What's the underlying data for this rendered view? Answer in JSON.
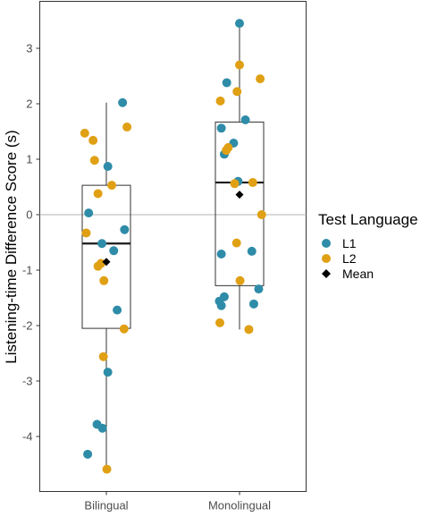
{
  "chart_data": {
    "type": "box",
    "xlabel": "",
    "ylabel": "Listening-time Difference Score (s)",
    "ylim": [
      -4.9,
      3.6
    ],
    "yticks": [
      -4,
      -3,
      -2,
      -1,
      0,
      1,
      2,
      3
    ],
    "categories": [
      "Bilingual",
      "Monolingual"
    ],
    "reference_line_y": 0,
    "grid": false,
    "legend": {
      "title": "Test Language",
      "position": "right",
      "entries": [
        {
          "label": "L1",
          "shape": "circle",
          "color": "#2e8ca8"
        },
        {
          "label": "L2",
          "shape": "circle",
          "color": "#e0a014"
        },
        {
          "label": "Mean",
          "shape": "diamond",
          "color": "#000000"
        }
      ]
    },
    "boxes": [
      {
        "category": "Bilingual",
        "whisker_low": -4.6,
        "q1": -2.05,
        "median": -0.52,
        "q3": 0.53,
        "whisker_high": 2.02,
        "mean": -0.85
      },
      {
        "category": "Monolingual",
        "whisker_low": -2.07,
        "q1": -1.28,
        "median": 0.58,
        "q3": 1.67,
        "whisker_high": 3.45,
        "mean": 0.36
      }
    ],
    "series": [
      {
        "name": "L1",
        "color": "#2e8ca8",
        "points": [
          {
            "group": "Bilingual",
            "jitter": 0.33,
            "y": 2.02
          },
          {
            "group": "Bilingual",
            "jitter": 0.03,
            "y": 0.87
          },
          {
            "group": "Bilingual",
            "jitter": -0.36,
            "y": 0.03
          },
          {
            "group": "Bilingual",
            "jitter": 0.37,
            "y": -0.27
          },
          {
            "group": "Bilingual",
            "jitter": -0.09,
            "y": -0.52
          },
          {
            "group": "Bilingual",
            "jitter": 0.15,
            "y": -0.65
          },
          {
            "group": "Bilingual",
            "jitter": 0.22,
            "y": -1.72
          },
          {
            "group": "Bilingual",
            "jitter": 0.03,
            "y": -2.84
          },
          {
            "group": "Bilingual",
            "jitter": -0.19,
            "y": -3.78
          },
          {
            "group": "Bilingual",
            "jitter": -0.08,
            "y": -3.85
          },
          {
            "group": "Bilingual",
            "jitter": -0.38,
            "y": -4.32
          },
          {
            "group": "Monolingual",
            "jitter": 0.0,
            "y": 3.45
          },
          {
            "group": "Monolingual",
            "jitter": -0.26,
            "y": 2.38
          },
          {
            "group": "Monolingual",
            "jitter": 0.12,
            "y": 1.71
          },
          {
            "group": "Monolingual",
            "jitter": -0.37,
            "y": 1.56
          },
          {
            "group": "Monolingual",
            "jitter": -0.12,
            "y": 1.29
          },
          {
            "group": "Monolingual",
            "jitter": -0.31,
            "y": 1.09
          },
          {
            "group": "Monolingual",
            "jitter": -0.03,
            "y": 0.6
          },
          {
            "group": "Monolingual",
            "jitter": 0.25,
            "y": -0.66
          },
          {
            "group": "Monolingual",
            "jitter": -0.37,
            "y": -0.71
          },
          {
            "group": "Monolingual",
            "jitter": 0.39,
            "y": -1.34
          },
          {
            "group": "Monolingual",
            "jitter": -0.31,
            "y": -1.48
          },
          {
            "group": "Monolingual",
            "jitter": -0.41,
            "y": -1.56
          },
          {
            "group": "Monolingual",
            "jitter": -0.37,
            "y": -1.64
          },
          {
            "group": "Monolingual",
            "jitter": 0.29,
            "y": -1.61
          }
        ]
      },
      {
        "name": "L2",
        "color": "#e0a014",
        "points": [
          {
            "group": "Bilingual",
            "jitter": 0.42,
            "y": 1.58
          },
          {
            "group": "Bilingual",
            "jitter": -0.44,
            "y": 1.47
          },
          {
            "group": "Bilingual",
            "jitter": -0.27,
            "y": 1.34
          },
          {
            "group": "Bilingual",
            "jitter": -0.24,
            "y": 0.98
          },
          {
            "group": "Bilingual",
            "jitter": 0.11,
            "y": 0.53
          },
          {
            "group": "Bilingual",
            "jitter": -0.17,
            "y": 0.38
          },
          {
            "group": "Bilingual",
            "jitter": -0.41,
            "y": -0.33
          },
          {
            "group": "Bilingual",
            "jitter": -0.11,
            "y": -0.88
          },
          {
            "group": "Bilingual",
            "jitter": -0.17,
            "y": -0.93
          },
          {
            "group": "Bilingual",
            "jitter": -0.05,
            "y": -1.19
          },
          {
            "group": "Bilingual",
            "jitter": 0.36,
            "y": -2.06
          },
          {
            "group": "Bilingual",
            "jitter": -0.06,
            "y": -2.56
          },
          {
            "group": "Bilingual",
            "jitter": 0.01,
            "y": -4.59
          },
          {
            "group": "Monolingual",
            "jitter": 0.0,
            "y": 2.7
          },
          {
            "group": "Monolingual",
            "jitter": 0.42,
            "y": 2.45
          },
          {
            "group": "Monolingual",
            "jitter": -0.05,
            "y": 2.22
          },
          {
            "group": "Monolingual",
            "jitter": -0.39,
            "y": 2.05
          },
          {
            "group": "Monolingual",
            "jitter": -0.23,
            "y": 1.21
          },
          {
            "group": "Monolingual",
            "jitter": -0.27,
            "y": 1.16
          },
          {
            "group": "Monolingual",
            "jitter": -0.1,
            "y": 0.56
          },
          {
            "group": "Monolingual",
            "jitter": 0.27,
            "y": 0.58
          },
          {
            "group": "Monolingual",
            "jitter": 0.45,
            "y": 0.0
          },
          {
            "group": "Monolingual",
            "jitter": -0.06,
            "y": -0.51
          },
          {
            "group": "Monolingual",
            "jitter": 0.01,
            "y": -1.19
          },
          {
            "group": "Monolingual",
            "jitter": -0.4,
            "y": -1.95
          },
          {
            "group": "Monolingual",
            "jitter": 0.19,
            "y": -2.07
          }
        ]
      }
    ]
  }
}
